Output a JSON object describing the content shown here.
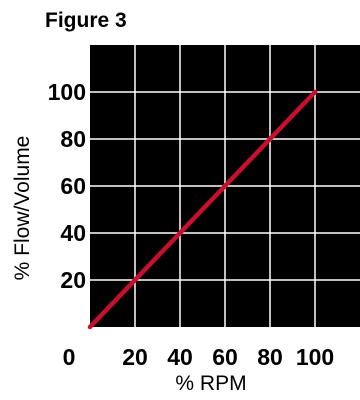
{
  "chart_data": {
    "type": "line",
    "title": "Figure 3",
    "xlabel": "% RPM",
    "ylabel": "% Flow/Volume",
    "x_ticks": [
      0,
      20,
      40,
      60,
      80,
      100
    ],
    "y_ticks": [
      20,
      40,
      60,
      80,
      100
    ],
    "xlim": [
      0,
      120
    ],
    "ylim": [
      0,
      120
    ],
    "grid": true,
    "series": [
      {
        "color": "#c8102e",
        "x": [
          0,
          100
        ],
        "y": [
          0,
          100
        ]
      }
    ],
    "colors": {
      "plot_background": "#000000",
      "grid": "#ffffff",
      "line": "#c8102e"
    }
  }
}
